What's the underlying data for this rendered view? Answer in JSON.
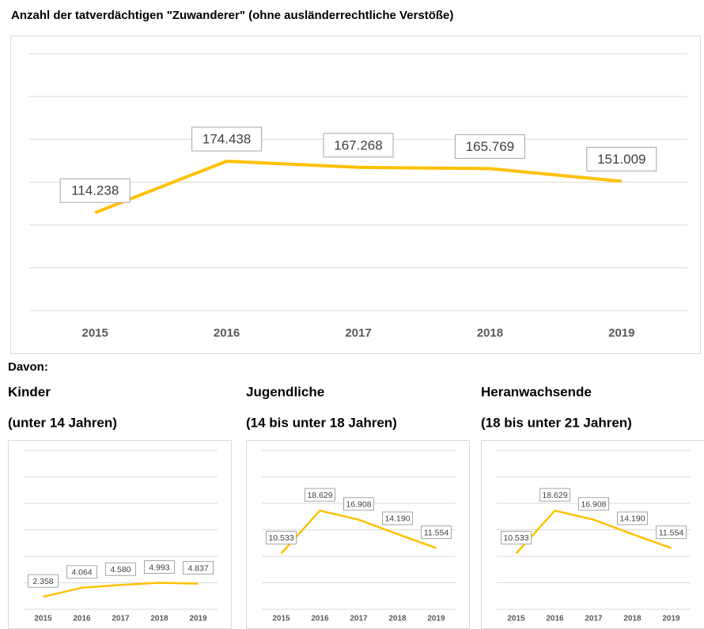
{
  "section_label": "Davon:",
  "chart_data": [
    {
      "type": "line",
      "title": "Anzahl der tatverdächtigen \"Zuwanderer\" (ohne ausländerrechtliche Verstöße)",
      "categories": [
        "2015",
        "2016",
        "2017",
        "2018",
        "2019"
      ],
      "values": [
        114238,
        174438,
        167268,
        165769,
        151009
      ],
      "value_labels": [
        "114.238",
        "174.438",
        "167.268",
        "165.769",
        "151.009"
      ],
      "color": "#ffc000",
      "ylim": [
        0,
        300000
      ],
      "yticks": [
        0,
        50000,
        100000,
        150000,
        200000,
        250000,
        300000
      ],
      "grid": true
    },
    {
      "type": "line",
      "title": "Kinder",
      "subtitle": "(unter 14 Jahren)",
      "categories": [
        "2015",
        "2016",
        "2017",
        "2018",
        "2019"
      ],
      "values": [
        2358,
        4064,
        4580,
        4993,
        4837
      ],
      "value_labels": [
        "2.358",
        "4.064",
        "4.580",
        "4.993",
        "4.837"
      ],
      "color": "#ffc000",
      "ylim": [
        0,
        30000
      ],
      "yticks": [
        0,
        5000,
        10000,
        15000,
        20000,
        25000,
        30000
      ],
      "grid": true
    },
    {
      "type": "line",
      "title": "Jugendliche",
      "subtitle": "(14 bis unter 18 Jahren)",
      "categories": [
        "2015",
        "2016",
        "2017",
        "2018",
        "2019"
      ],
      "values": [
        10533,
        18629,
        16908,
        14190,
        11554
      ],
      "value_labels": [
        "10.533",
        "18.629",
        "16.908",
        "14.190",
        "11.554"
      ],
      "color": "#ffc000",
      "ylim": [
        0,
        30000
      ],
      "yticks": [
        0,
        5000,
        10000,
        15000,
        20000,
        25000,
        30000
      ],
      "grid": true
    },
    {
      "type": "line",
      "title": "Heranwachsende",
      "subtitle": "(18 bis unter 21 Jahren)",
      "categories": [
        "2015",
        "2016",
        "2017",
        "2018",
        "2019"
      ],
      "values": [
        10533,
        18629,
        16908,
        14190,
        11554
      ],
      "value_labels": [
        "10.533",
        "18.629",
        "16.908",
        "14.190",
        "11.554"
      ],
      "color": "#ffc000",
      "ylim": [
        0,
        30000
      ],
      "yticks": [
        0,
        5000,
        10000,
        15000,
        20000,
        25000,
        30000
      ],
      "grid": true
    }
  ]
}
